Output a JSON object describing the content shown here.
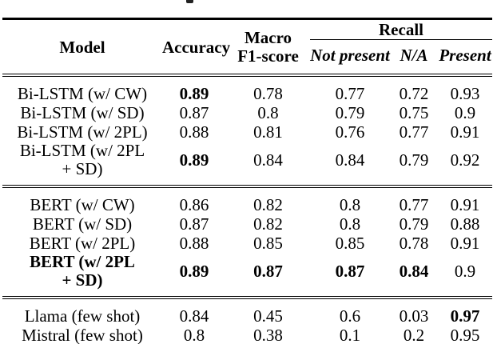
{
  "table": {
    "headers": {
      "model": "Model",
      "accuracy": "Accuracy",
      "macro_f1_line1": "Macro",
      "macro_f1_line2": "F1-score",
      "recall": "Recall",
      "recall_sub": [
        "Not present",
        "N/A",
        "Present"
      ]
    },
    "sections": [
      {
        "rows": [
          {
            "model": "Bi-LSTM (w/ CW)",
            "values": [
              "0.89",
              "0.78",
              "0.77",
              "0.72",
              "0.93"
            ]
          },
          {
            "model": "Bi-LSTM (w/ SD)",
            "values": [
              "0.87",
              "0.8",
              "0.79",
              "0.75",
              "0.9"
            ]
          },
          {
            "model": "Bi-LSTM (w/ 2PL)",
            "values": [
              "0.88",
              "0.81",
              "0.76",
              "0.77",
              "0.91"
            ]
          },
          {
            "model": "Bi-LSTM (w/ 2PL",
            "model_line2": "+ SD)",
            "values": [
              "0.89",
              "0.84",
              "0.84",
              "0.79",
              "0.92"
            ]
          }
        ]
      },
      {
        "rows": [
          {
            "model": "BERT (w/ CW)",
            "values": [
              "0.86",
              "0.82",
              "0.8",
              "0.77",
              "0.91"
            ]
          },
          {
            "model": "BERT (w/ SD)",
            "values": [
              "0.87",
              "0.82",
              "0.8",
              "0.79",
              "0.88"
            ]
          },
          {
            "model": "BERT (w/ 2PL)",
            "values": [
              "0.88",
              "0.85",
              "0.85",
              "0.78",
              "0.91"
            ]
          },
          {
            "model": "BERT (w/ 2PL",
            "model_line2": "+ SD)",
            "values": [
              "0.89",
              "0.87",
              "0.87",
              "0.84",
              "0.9"
            ]
          }
        ]
      },
      {
        "rows": [
          {
            "model": "Llama (few shot)",
            "values": [
              "0.84",
              "0.45",
              "0.6",
              "0.03",
              "0.97"
            ]
          },
          {
            "model": "Mistral (few shot)",
            "values": [
              "0.8",
              "0.38",
              "0.1",
              "0.2",
              "0.95"
            ]
          }
        ]
      }
    ],
    "text_color": "#000000",
    "background_color": "#ffffff"
  }
}
